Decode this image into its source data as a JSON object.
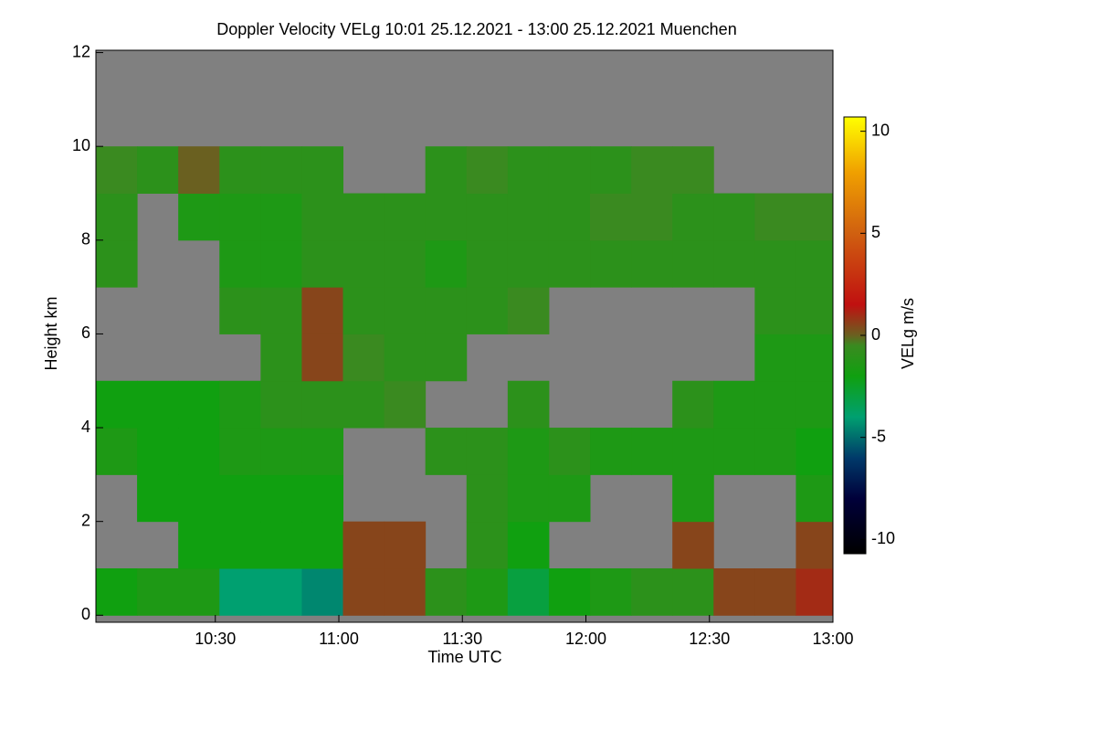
{
  "chart_data": {
    "type": "heatmap",
    "title": "Doppler Velocity VELg   10:01 25.12.2021 - 13:00 25.12.2021 Muenchen",
    "xlabel": "Time UTC",
    "ylabel": "Height km",
    "colorbar_label": "VELg m/s",
    "xbins": [
      601,
      611,
      621,
      631,
      641,
      651,
      661,
      671,
      681,
      691,
      701,
      711,
      721,
      731,
      741,
      751,
      761,
      771,
      780
    ],
    "ybins": [
      0,
      1,
      2,
      3,
      4,
      5,
      6,
      7,
      8,
      9,
      10,
      11,
      12
    ],
    "values": [
      [
        -2,
        -1.5,
        -1.5,
        -4,
        -4,
        -4.5,
        0.5,
        0.5,
        -1,
        -1.5,
        -3,
        -2,
        -1.5,
        -1,
        -1,
        0.5,
        0.5,
        1
      ],
      [
        null,
        null,
        -2,
        -2,
        -2,
        -2,
        0.5,
        0.5,
        null,
        -1,
        -2,
        null,
        null,
        null,
        0.5,
        null,
        null,
        0.5
      ],
      [
        null,
        -2,
        -2,
        -2,
        -2,
        -2,
        null,
        null,
        null,
        -1,
        -1.5,
        -1.5,
        null,
        null,
        -1.5,
        null,
        null,
        -1.5
      ],
      [
        -1.5,
        -2,
        -2,
        -1.5,
        -1.5,
        -1.5,
        null,
        null,
        -1,
        -1,
        -1.5,
        -1,
        -1.5,
        -1.5,
        -1.5,
        -1.5,
        -1.5,
        -2
      ],
      [
        -2,
        -2,
        -2,
        -1.5,
        -1,
        -1,
        -1,
        -0.5,
        null,
        null,
        -1,
        null,
        null,
        null,
        -1,
        -1.5,
        -1.5,
        -1.5
      ],
      [
        null,
        null,
        null,
        null,
        -1,
        0.5,
        -0.5,
        -1,
        -1,
        null,
        null,
        null,
        null,
        null,
        null,
        null,
        -1.5,
        -1.5
      ],
      [
        null,
        null,
        null,
        -1,
        -1,
        0.5,
        -1,
        -1,
        -1,
        -1,
        -0.5,
        null,
        null,
        null,
        null,
        null,
        -1,
        -1
      ],
      [
        -1,
        null,
        null,
        -1.5,
        -1.5,
        -1,
        -1,
        -1,
        -1.5,
        -1,
        -1,
        -1,
        -1,
        -1,
        -1,
        -1,
        -1,
        -1
      ],
      [
        -1,
        null,
        -1.5,
        -1.5,
        -1.5,
        -1,
        -1,
        -1,
        -1,
        -1,
        -1,
        -1,
        -0.5,
        -0.5,
        -1,
        -1,
        -0.5,
        -0.5
      ],
      [
        -0.5,
        -1,
        0,
        -1,
        -1,
        -1,
        null,
        null,
        -1,
        -0.5,
        -1,
        -1,
        -1,
        -0.5,
        -0.5,
        null,
        null,
        null
      ],
      [
        null,
        null,
        null,
        null,
        null,
        null,
        null,
        null,
        null,
        null,
        null,
        null,
        null,
        null,
        null,
        null,
        null,
        null
      ],
      [
        null,
        null,
        null,
        null,
        null,
        null,
        null,
        null,
        null,
        null,
        null,
        null,
        null,
        null,
        null,
        null,
        null,
        null
      ]
    ],
    "xlim": [
      601,
      780
    ],
    "ylim": [
      -0.15,
      12.05
    ],
    "xticks": [
      {
        "value": 630,
        "label": "10:30"
      },
      {
        "value": 660,
        "label": "11:00"
      },
      {
        "value": 690,
        "label": "11:30"
      },
      {
        "value": 720,
        "label": "12:00"
      },
      {
        "value": 750,
        "label": "12:30"
      },
      {
        "value": 780,
        "label": "13:00"
      }
    ],
    "yticks": [
      0,
      2,
      4,
      6,
      8,
      10,
      12
    ],
    "clim": [
      -10.7,
      10.7
    ],
    "cticks": [
      -10,
      -5,
      0,
      5,
      10
    ],
    "colorscale": [
      [
        -10.7,
        "#000000"
      ],
      [
        -8,
        "#00003a"
      ],
      [
        -6,
        "#003a6a"
      ],
      [
        -4,
        "#00a070"
      ],
      [
        -2,
        "#10a010"
      ],
      [
        -0.5,
        "#3a8a20"
      ],
      [
        0,
        "#6a6020"
      ],
      [
        1.5,
        "#c01010"
      ],
      [
        5,
        "#d06010"
      ],
      [
        8,
        "#f0a000"
      ],
      [
        10.7,
        "#ffff00"
      ]
    ],
    "null_color": "#808080"
  }
}
